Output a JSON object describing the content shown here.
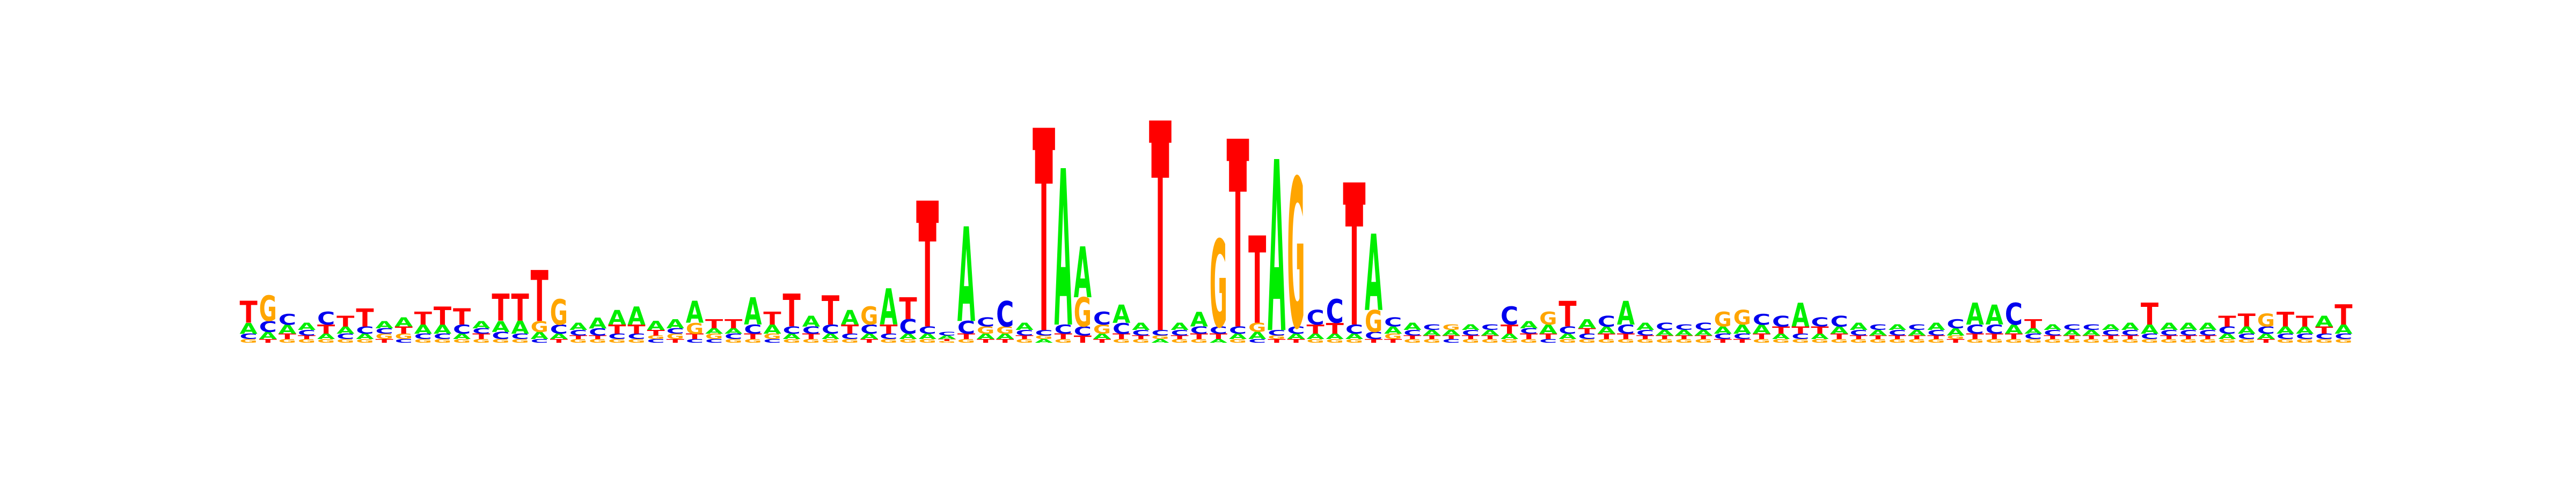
{
  "chart_data": {
    "type": "sequence-logo",
    "title": "",
    "xlabel": "",
    "ylabel": "",
    "colors": {
      "A": "#00ee00",
      "C": "#0000ee",
      "G": "#ffa500",
      "T": "#ff0000"
    },
    "positions": [
      {
        "T": 0.12,
        "A": 0.06,
        "C": 0.03,
        "G": 0.02
      },
      {
        "G": 0.14,
        "C": 0.06,
        "A": 0.04,
        "T": 0.02
      },
      {
        "C": 0.06,
        "A": 0.05,
        "T": 0.03,
        "G": 0.02
      },
      {
        "A": 0.04,
        "C": 0.03,
        "G": 0.02,
        "T": 0.02
      },
      {
        "C": 0.07,
        "T": 0.05,
        "A": 0.03,
        "G": 0.02
      },
      {
        "T": 0.06,
        "A": 0.04,
        "C": 0.03,
        "G": 0.02
      },
      {
        "T": 0.1,
        "C": 0.04,
        "A": 0.03,
        "G": 0.02
      },
      {
        "A": 0.04,
        "G": 0.03,
        "C": 0.03,
        "T": 0.02
      },
      {
        "A": 0.05,
        "T": 0.04,
        "G": 0.03,
        "C": 0.02
      },
      {
        "T": 0.07,
        "A": 0.05,
        "C": 0.03,
        "G": 0.02
      },
      {
        "T": 0.1,
        "A": 0.05,
        "C": 0.03,
        "G": 0.02
      },
      {
        "T": 0.09,
        "C": 0.05,
        "A": 0.03,
        "G": 0.02
      },
      {
        "A": 0.04,
        "T": 0.03,
        "C": 0.03,
        "G": 0.02
      },
      {
        "T": 0.15,
        "A": 0.06,
        "C": 0.04,
        "G": 0.02
      },
      {
        "T": 0.15,
        "A": 0.07,
        "C": 0.03,
        "G": 0.02
      },
      {
        "T": 0.28,
        "G": 0.06,
        "A": 0.04,
        "C": 0.02
      },
      {
        "G": 0.14,
        "C": 0.05,
        "A": 0.03,
        "T": 0.02
      },
      {
        "A": 0.04,
        "C": 0.03,
        "G": 0.02,
        "T": 0.02
      },
      {
        "A": 0.06,
        "C": 0.04,
        "G": 0.02,
        "T": 0.02
      },
      {
        "A": 0.08,
        "T": 0.05,
        "C": 0.03,
        "G": 0.02
      },
      {
        "A": 0.1,
        "T": 0.05,
        "C": 0.03,
        "G": 0.02
      },
      {
        "A": 0.05,
        "T": 0.03,
        "C": 0.02,
        "G": 0.02
      },
      {
        "A": 0.05,
        "G": 0.03,
        "C": 0.03,
        "T": 0.02
      },
      {
        "A": 0.12,
        "G": 0.06,
        "T": 0.03,
        "C": 0.02
      },
      {
        "T": 0.05,
        "G": 0.03,
        "A": 0.03,
        "C": 0.02
      },
      {
        "T": 0.05,
        "C": 0.03,
        "A": 0.03,
        "G": 0.02
      },
      {
        "A": 0.15,
        "C": 0.05,
        "T": 0.03,
        "G": 0.02
      },
      {
        "T": 0.07,
        "A": 0.05,
        "G": 0.03,
        "C": 0.02
      },
      {
        "T": 0.18,
        "C": 0.04,
        "A": 0.03,
        "G": 0.02
      },
      {
        "A": 0.06,
        "C": 0.04,
        "T": 0.03,
        "G": 0.02
      },
      {
        "T": 0.16,
        "C": 0.05,
        "A": 0.03,
        "G": 0.02
      },
      {
        "A": 0.08,
        "T": 0.05,
        "C": 0.03,
        "G": 0.02
      },
      {
        "G": 0.1,
        "C": 0.05,
        "A": 0.03,
        "T": 0.02
      },
      {
        "A": 0.2,
        "T": 0.05,
        "C": 0.03,
        "G": 0.02
      },
      {
        "T": 0.12,
        "C": 0.08,
        "A": 0.03,
        "G": 0.02
      },
      {
        "T": 0.58,
        "C": 0.04,
        "A": 0.03,
        "G": 0.02
      },
      {
        "A": 0.02,
        "C": 0.02,
        "G": 0.01,
        "T": 0.01
      },
      {
        "A": 0.52,
        "C": 0.07,
        "T": 0.03,
        "G": 0.02
      },
      {
        "C": 0.05,
        "G": 0.04,
        "A": 0.03,
        "T": 0.02
      },
      {
        "C": 0.14,
        "G": 0.04,
        "A": 0.03,
        "T": 0.02
      },
      {
        "A": 0.04,
        "C": 0.03,
        "G": 0.02,
        "T": 0.02
      },
      {
        "T": 1.0,
        "C": 0.03,
        "A": 0.02,
        "G": 0.02
      },
      {
        "A": 0.86,
        "C": 0.05,
        "T": 0.03,
        "G": 0.02
      },
      {
        "A": 0.28,
        "G": 0.16,
        "C": 0.05,
        "T": 0.04
      },
      {
        "C": 0.07,
        "G": 0.05,
        "A": 0.03,
        "T": 0.02
      },
      {
        "A": 0.1,
        "C": 0.06,
        "T": 0.03,
        "G": 0.02
      },
      {
        "A": 0.04,
        "C": 0.03,
        "G": 0.02,
        "T": 0.02
      },
      {
        "T": 1.04,
        "C": 0.03,
        "A": 0.02,
        "G": 0.02
      },
      {
        "A": 0.04,
        "C": 0.03,
        "G": 0.02,
        "T": 0.02
      },
      {
        "A": 0.08,
        "C": 0.04,
        "T": 0.03,
        "G": 0.02
      },
      {
        "G": 0.48,
        "C": 0.04,
        "T": 0.03,
        "A": 0.02
      },
      {
        "T": 0.92,
        "C": 0.04,
        "A": 0.03,
        "G": 0.02
      },
      {
        "T": 0.48,
        "G": 0.05,
        "A": 0.04,
        "C": 0.02
      },
      {
        "A": 0.94,
        "C": 0.03,
        "T": 0.02,
        "G": 0.02
      },
      {
        "G": 0.82,
        "C": 0.04,
        "A": 0.03,
        "T": 0.02
      },
      {
        "C": 0.08,
        "T": 0.05,
        "A": 0.03,
        "G": 0.02
      },
      {
        "C": 0.13,
        "T": 0.06,
        "A": 0.03,
        "G": 0.02
      },
      {
        "T": 0.67,
        "C": 0.05,
        "A": 0.03,
        "G": 0.02
      },
      {
        "A": 0.42,
        "G": 0.12,
        "C": 0.04,
        "T": 0.02
      },
      {
        "C": 0.05,
        "A": 0.04,
        "G": 0.03,
        "T": 0.02
      },
      {
        "A": 0.04,
        "C": 0.03,
        "G": 0.02,
        "T": 0.02
      },
      {
        "A": 0.03,
        "C": 0.03,
        "G": 0.02,
        "T": 0.02
      },
      {
        "A": 0.03,
        "G": 0.03,
        "C": 0.02,
        "T": 0.02
      },
      {
        "C": 0.03,
        "A": 0.03,
        "G": 0.02,
        "T": 0.02
      },
      {
        "A": 0.03,
        "C": 0.03,
        "G": 0.02,
        "T": 0.02
      },
      {
        "C": 0.1,
        "T": 0.05,
        "A": 0.03,
        "G": 0.02
      },
      {
        "A": 0.04,
        "T": 0.03,
        "C": 0.03,
        "G": 0.02
      },
      {
        "G": 0.07,
        "A": 0.05,
        "T": 0.03,
        "C": 0.02
      },
      {
        "T": 0.14,
        "C": 0.04,
        "A": 0.03,
        "G": 0.02
      },
      {
        "A": 0.05,
        "C": 0.03,
        "T": 0.03,
        "G": 0.02
      },
      {
        "C": 0.06,
        "A": 0.04,
        "T": 0.03,
        "G": 0.02
      },
      {
        "A": 0.13,
        "C": 0.05,
        "T": 0.03,
        "G": 0.02
      },
      {
        "A": 0.04,
        "C": 0.03,
        "G": 0.02,
        "T": 0.02
      },
      {
        "C": 0.04,
        "A": 0.03,
        "G": 0.02,
        "T": 0.02
      },
      {
        "A": 0.03,
        "C": 0.03,
        "G": 0.02,
        "T": 0.02
      },
      {
        "C": 0.04,
        "A": 0.03,
        "G": 0.02,
        "T": 0.02
      },
      {
        "G": 0.08,
        "A": 0.04,
        "C": 0.03,
        "T": 0.02
      },
      {
        "G": 0.08,
        "A": 0.05,
        "C": 0.03,
        "T": 0.02
      },
      {
        "C": 0.06,
        "A": 0.05,
        "T": 0.03,
        "G": 0.02
      },
      {
        "C": 0.06,
        "T": 0.04,
        "A": 0.03,
        "G": 0.02
      },
      {
        "A": 0.13,
        "T": 0.04,
        "C": 0.03,
        "G": 0.02
      },
      {
        "C": 0.05,
        "T": 0.04,
        "A": 0.03,
        "G": 0.02
      },
      {
        "C": 0.06,
        "A": 0.04,
        "T": 0.03,
        "G": 0.02
      },
      {
        "A": 0.04,
        "C": 0.03,
        "G": 0.02,
        "T": 0.02
      },
      {
        "A": 0.03,
        "C": 0.03,
        "G": 0.02,
        "T": 0.02
      },
      {
        "C": 0.03,
        "A": 0.03,
        "G": 0.02,
        "T": 0.02
      },
      {
        "A": 0.03,
        "C": 0.03,
        "G": 0.02,
        "T": 0.02
      },
      {
        "A": 0.04,
        "C": 0.03,
        "G": 0.02,
        "T": 0.02
      },
      {
        "C": 0.05,
        "A": 0.04,
        "T": 0.02,
        "G": 0.02
      },
      {
        "A": 0.12,
        "C": 0.05,
        "T": 0.03,
        "G": 0.02
      },
      {
        "A": 0.11,
        "C": 0.05,
        "T": 0.03,
        "G": 0.02
      },
      {
        "C": 0.12,
        "A": 0.05,
        "T": 0.03,
        "G": 0.02
      },
      {
        "T": 0.05,
        "C": 0.03,
        "A": 0.03,
        "G": 0.02
      },
      {
        "C": 0.03,
        "A": 0.03,
        "G": 0.02,
        "T": 0.02
      },
      {
        "A": 0.03,
        "C": 0.03,
        "G": 0.02,
        "T": 0.02
      },
      {
        "A": 0.03,
        "C": 0.03,
        "G": 0.02,
        "T": 0.02
      },
      {
        "C": 0.03,
        "A": 0.03,
        "G": 0.02,
        "T": 0.02
      },
      {
        "A": 0.04,
        "C": 0.03,
        "G": 0.02,
        "T": 0.02
      },
      {
        "T": 0.12,
        "A": 0.05,
        "C": 0.03,
        "G": 0.02
      },
      {
        "A": 0.04,
        "C": 0.03,
        "G": 0.02,
        "T": 0.02
      },
      {
        "A": 0.04,
        "C": 0.03,
        "G": 0.02,
        "T": 0.02
      },
      {
        "A": 0.04,
        "C": 0.03,
        "G": 0.02,
        "T": 0.02
      },
      {
        "T": 0.06,
        "C": 0.04,
        "A": 0.03,
        "G": 0.02
      },
      {
        "T": 0.07,
        "A": 0.04,
        "C": 0.03,
        "G": 0.02
      },
      {
        "G": 0.07,
        "C": 0.04,
        "A": 0.03,
        "T": 0.02
      },
      {
        "T": 0.08,
        "A": 0.04,
        "C": 0.03,
        "G": 0.02
      },
      {
        "T": 0.06,
        "A": 0.04,
        "C": 0.03,
        "G": 0.02
      },
      {
        "A": 0.06,
        "T": 0.04,
        "C": 0.03,
        "G": 0.02
      },
      {
        "T": 0.11,
        "A": 0.05,
        "C": 0.03,
        "G": 0.02
      }
    ],
    "markers": [
      {
        "position": 35,
        "letter": "T"
      },
      {
        "position": 41,
        "letter": "T"
      },
      {
        "position": 47,
        "letter": "T"
      },
      {
        "position": 51,
        "letter": "T"
      },
      {
        "position": 57,
        "letter": "T"
      }
    ]
  }
}
